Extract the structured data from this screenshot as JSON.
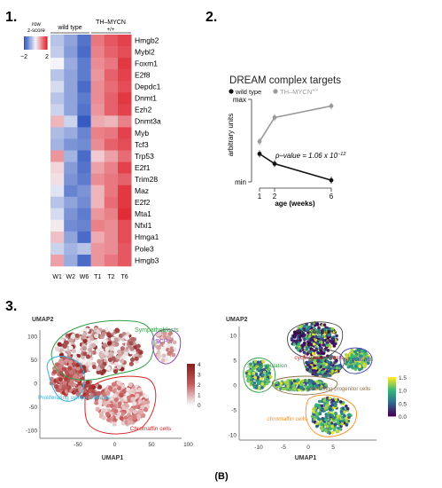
{
  "panel_labels": {
    "p1": "1.",
    "p2": "2.",
    "p3": "3.",
    "caption": "(B)"
  },
  "heatmap": {
    "legend_title_1": "row",
    "legend_title_2": "z-score",
    "legend_min": "−2",
    "legend_max": "2",
    "group_wt": "wild type",
    "group_th_1": "TH–MYCN",
    "group_th_2": "+/+",
    "columns": [
      "W1",
      "W2",
      "W6",
      "T1",
      "T2",
      "T6"
    ],
    "rows": [
      {
        "gene": "Hmgb2",
        "values": [
          -0.6,
          -1.0,
          -1.6,
          1.2,
          1.5,
          1.7
        ]
      },
      {
        "gene": "Mybl2",
        "values": [
          -0.5,
          -1.1,
          -1.7,
          1.1,
          1.4,
          1.6
        ]
      },
      {
        "gene": "Foxm1",
        "values": [
          0.0,
          -0.9,
          -1.5,
          1.0,
          1.2,
          1.8
        ]
      },
      {
        "gene": "E2f8",
        "values": [
          -0.6,
          -1.0,
          -1.5,
          0.9,
          1.4,
          1.7
        ]
      },
      {
        "gene": "Depdc1",
        "values": [
          -0.3,
          -1.0,
          -1.7,
          1.0,
          1.3,
          1.6
        ]
      },
      {
        "gene": "Dnmt1",
        "values": [
          -0.6,
          -1.0,
          -1.5,
          1.0,
          1.4,
          1.8
        ]
      },
      {
        "gene": "Ezh2",
        "values": [
          -0.4,
          -1.0,
          -1.6,
          0.9,
          1.4,
          1.7
        ]
      },
      {
        "gene": "Dnmt3a",
        "values": [
          0.6,
          -0.4,
          -1.9,
          0.7,
          0.6,
          1.1
        ]
      },
      {
        "gene": "Myb",
        "values": [
          -0.7,
          -0.9,
          -1.4,
          1.1,
          1.2,
          1.7
        ]
      },
      {
        "gene": "Tcf3",
        "values": [
          -0.8,
          -1.2,
          -1.3,
          1.0,
          1.4,
          1.6
        ]
      },
      {
        "gene": "Trp53",
        "values": [
          0.9,
          -0.8,
          -1.7,
          0.4,
          0.8,
          1.3
        ]
      },
      {
        "gene": "E2f1",
        "values": [
          0.3,
          -1.1,
          -1.6,
          0.8,
          1.1,
          1.7
        ]
      },
      {
        "gene": "Trim28",
        "values": [
          0.2,
          -1.2,
          -1.5,
          1.0,
          1.2,
          1.4
        ]
      },
      {
        "gene": "Maz",
        "values": [
          -0.2,
          -1.4,
          -1.2,
          0.6,
          1.2,
          1.8
        ]
      },
      {
        "gene": "E2f2",
        "values": [
          -0.6,
          -1.0,
          -1.3,
          0.6,
          1.3,
          1.8
        ]
      },
      {
        "gene": "Mta1",
        "values": [
          -0.3,
          -1.2,
          -1.5,
          0.9,
          1.1,
          1.9
        ]
      },
      {
        "gene": "Nfxl1",
        "values": [
          0.1,
          -1.3,
          -1.4,
          1.1,
          1.0,
          1.6
        ]
      },
      {
        "gene": "Hmga1",
        "values": [
          0.5,
          -1.0,
          -1.7,
          0.7,
          1.0,
          1.6
        ]
      },
      {
        "gene": "Pole3",
        "values": [
          -0.4,
          -0.8,
          -0.6,
          0.9,
          1.0,
          1.5
        ]
      },
      {
        "gene": "Hmgb3",
        "values": [
          0.8,
          -0.9,
          -1.7,
          0.9,
          1.2,
          1.5
        ]
      }
    ],
    "colors": {
      "low": "#2c54c0",
      "mid": "#f4f4f8",
      "high": "#e0232e"
    }
  },
  "chart_data": [
    {
      "type": "line",
      "title": "DREAM complex targets",
      "ylabel": "arbitrary units",
      "xlabel": "age (weeks)",
      "x": [
        1,
        2,
        6
      ],
      "xticks": [
        "1",
        "2",
        "6"
      ],
      "yticks": [
        "max",
        "min"
      ],
      "ylim": [
        0,
        1
      ],
      "series": [
        {
          "name": "wild type",
          "color": "#111111",
          "values": [
            0.34,
            0.22,
            0.02
          ]
        },
        {
          "name": "TH–MYCN",
          "name_sup": "+/+",
          "color": "#9a9a9a",
          "values": [
            0.49,
            0.78,
            0.92
          ]
        }
      ],
      "annotation": {
        "prefix": "p–value = 1.06 x 10",
        "exponent": "−12"
      },
      "legend_position": "top"
    },
    {
      "type": "scatter",
      "xlabel": "UMAP1",
      "ylabel": "UMAP2",
      "xticks": [
        "-50",
        "0",
        "50",
        "100"
      ],
      "yticks": [
        "100",
        "50",
        "0",
        "-50",
        "-100"
      ],
      "colorbar_ticks": [
        "4",
        "3",
        "2",
        "1",
        "0"
      ],
      "colorbar_colors": [
        "#8f1f1f",
        "#f4f4f4"
      ],
      "clusters": [
        {
          "label": "Sympathoblasts",
          "color": "#2f9e44"
        },
        {
          "label": "SCP's",
          "color": "#8e44ad"
        },
        {
          "label": "Proliferating sympathoblasts",
          "color": "#3aaeda"
        },
        {
          "label": "Chromaffin cells",
          "color": "#d62728"
        }
      ]
    },
    {
      "type": "scatter",
      "xlabel": "UMAP1",
      "ylabel": "UMAP2",
      "xticks": [
        "-10",
        "-5",
        "0",
        "5"
      ],
      "yticks": [
        "10",
        "5",
        "0",
        "-5",
        "-10"
      ],
      "colorbar_ticks": [
        "1.5",
        "1.0",
        "0.5",
        "0.0"
      ],
      "colorbar_colors": [
        "#fde725",
        "#35b779",
        "#31688e",
        "#440154"
      ],
      "clusters": [
        {
          "label": "late neuroblasts",
          "color": "#222222"
        },
        {
          "label": "SCP population",
          "color": "#2f9e44"
        },
        {
          "label": "cycling neuroblasts",
          "color": "#d62728"
        },
        {
          "label": "neuroblasts",
          "color": "#3b3bb0"
        },
        {
          "label": "connecting progenitor cells",
          "color": "#8c6d46"
        },
        {
          "label": "chromaffin cells",
          "color": "#ff8c1a"
        }
      ]
    }
  ]
}
